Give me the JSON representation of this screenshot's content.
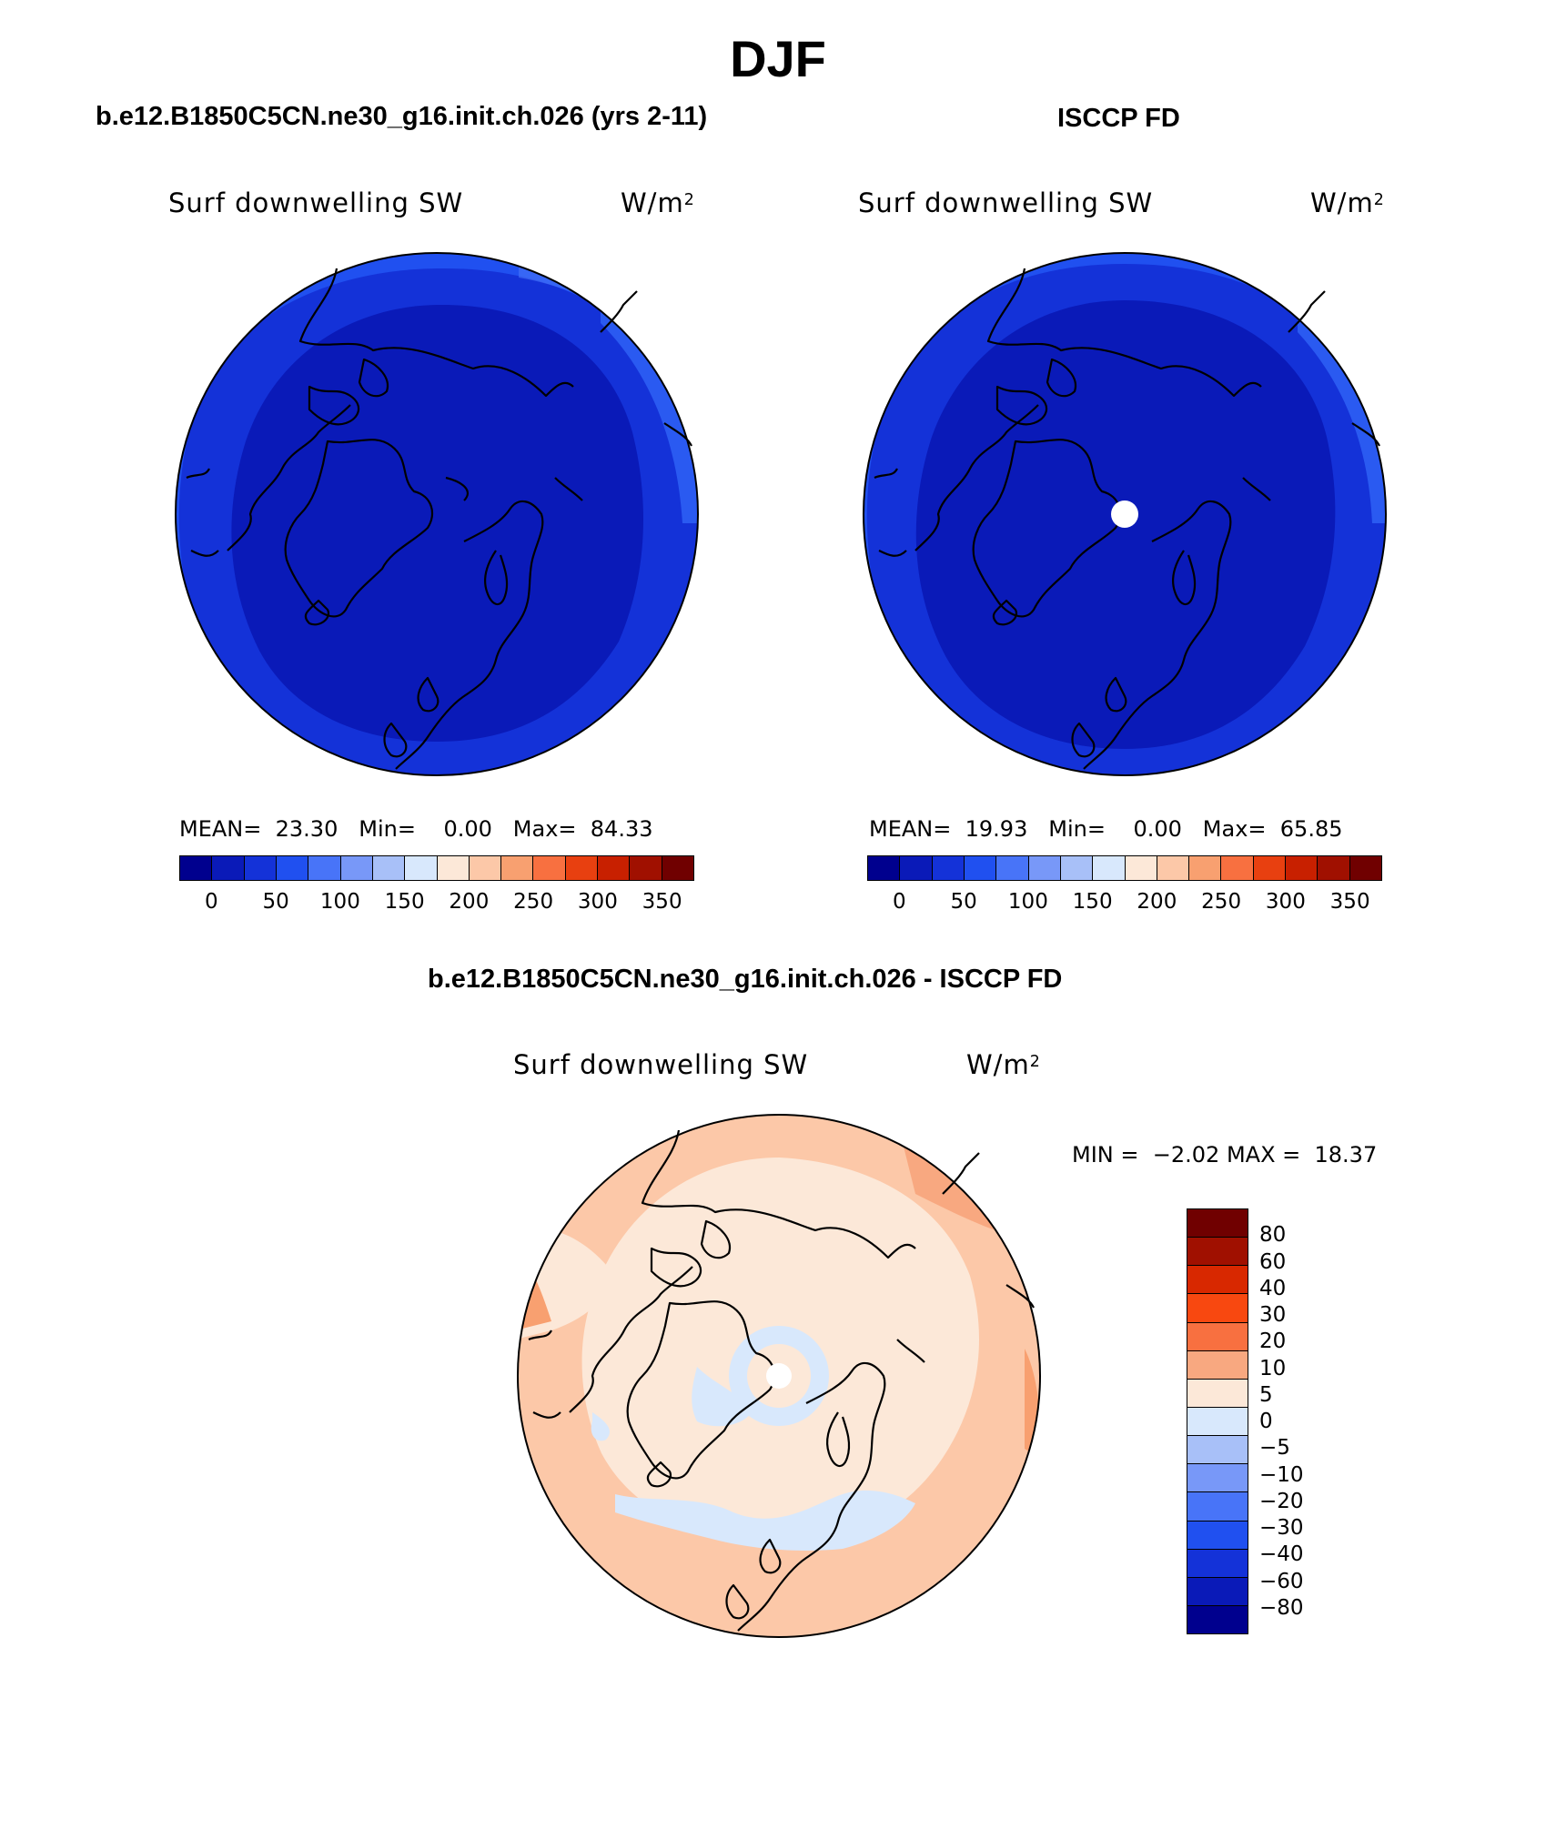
{
  "title": "DJF",
  "panels": [
    {
      "heading": "b.e12.B1850C5CN.ne30_g16.init.ch.026 (yrs 2-11)",
      "variable": "Surf downwelling SW",
      "units": "W/m",
      "units_exp": "2",
      "mean_label": "MEAN=",
      "mean": "23.30",
      "min_label": "Min=",
      "min": "0.00",
      "max_label": "Max=",
      "max": "84.33"
    },
    {
      "heading": "ISCCP FD",
      "variable": "Surf downwelling SW",
      "units": "W/m",
      "units_exp": "2",
      "mean_label": "MEAN=",
      "mean": "19.93",
      "min_label": "Min=",
      "min": "0.00",
      "max_label": "Max=",
      "max": "65.85"
    }
  ],
  "diff": {
    "heading": "b.e12.B1850C5CN.ne30_g16.init.ch.026 - ISCCP FD",
    "variable": "Surf downwelling SW",
    "units": "W/m",
    "units_exp": "2",
    "min_label": "MIN =",
    "min": "−2.02",
    "max_label": "MAX =",
    "max": "18.37"
  },
  "colorbar_abs": {
    "colors": [
      "#00008e",
      "#0a1ab8",
      "#1432d8",
      "#2050f0",
      "#4874f8",
      "#7898f8",
      "#a8c0f8",
      "#d8e8fc",
      "#fce8d8",
      "#fcc8a8",
      "#f8a070",
      "#f87040",
      "#e84010",
      "#c82000",
      "#a01000",
      "#700000"
    ],
    "ticks": [
      "0",
      "50",
      "100",
      "150",
      "200",
      "250",
      "300",
      "350"
    ]
  },
  "colorbar_diff": {
    "colors": [
      "#700000",
      "#a01000",
      "#d82800",
      "#f84810",
      "#f87040",
      "#f8a880",
      "#fce8d8",
      "#d8e8fc",
      "#a8c0f8",
      "#7898f8",
      "#4874f8",
      "#2050f0",
      "#1432d8",
      "#0a1ab8",
      "#00008e"
    ],
    "ticks": [
      "80",
      "60",
      "40",
      "30",
      "20",
      "10",
      "5",
      "0",
      "−5",
      "−10",
      "−20",
      "−30",
      "−40",
      "−60",
      "−80"
    ]
  }
}
